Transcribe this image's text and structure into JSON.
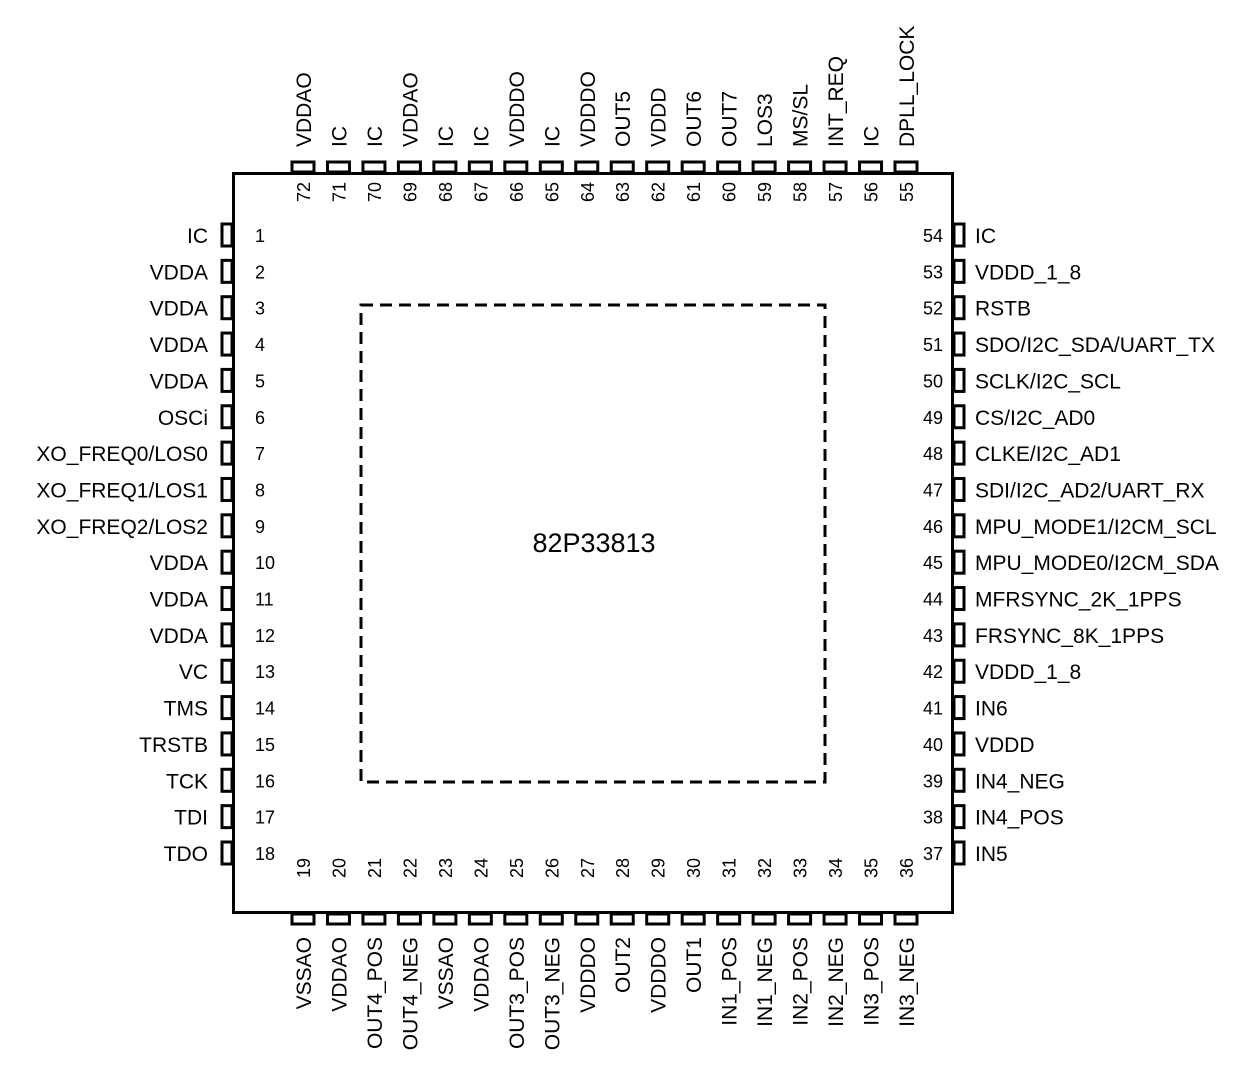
{
  "chip": {
    "name": "82P33813"
  },
  "pins": {
    "left": [
      {
        "num": "1",
        "name": "IC"
      },
      {
        "num": "2",
        "name": "VDDA"
      },
      {
        "num": "3",
        "name": "VDDA"
      },
      {
        "num": "4",
        "name": "VDDA"
      },
      {
        "num": "5",
        "name": "VDDA"
      },
      {
        "num": "6",
        "name": "OSCi"
      },
      {
        "num": "7",
        "name": "XO_FREQ0/LOS0"
      },
      {
        "num": "8",
        "name": "XO_FREQ1/LOS1"
      },
      {
        "num": "9",
        "name": "XO_FREQ2/LOS2"
      },
      {
        "num": "10",
        "name": "VDDA"
      },
      {
        "num": "11",
        "name": "VDDA"
      },
      {
        "num": "12",
        "name": "VDDA"
      },
      {
        "num": "13",
        "name": "VC"
      },
      {
        "num": "14",
        "name": "TMS"
      },
      {
        "num": "15",
        "name": "TRSTB"
      },
      {
        "num": "16",
        "name": "TCK"
      },
      {
        "num": "17",
        "name": "TDI"
      },
      {
        "num": "18",
        "name": "TDO"
      }
    ],
    "bottom": [
      {
        "num": "19",
        "name": "VSSAO"
      },
      {
        "num": "20",
        "name": "VDDAO"
      },
      {
        "num": "21",
        "name": "OUT4_POS"
      },
      {
        "num": "22",
        "name": "OUT4_NEG"
      },
      {
        "num": "23",
        "name": "VSSAO"
      },
      {
        "num": "24",
        "name": "VDDAO"
      },
      {
        "num": "25",
        "name": "OUT3_POS"
      },
      {
        "num": "26",
        "name": "OUT3_NEG"
      },
      {
        "num": "27",
        "name": "VDDDO"
      },
      {
        "num": "28",
        "name": "OUT2"
      },
      {
        "num": "29",
        "name": "VDDDO"
      },
      {
        "num": "30",
        "name": "OUT1"
      },
      {
        "num": "31",
        "name": "IN1_POS"
      },
      {
        "num": "32",
        "name": "IN1_NEG"
      },
      {
        "num": "33",
        "name": "IN2_POS"
      },
      {
        "num": "34",
        "name": "IN2_NEG"
      },
      {
        "num": "35",
        "name": "IN3_POS"
      },
      {
        "num": "36",
        "name": "IN3_NEG"
      }
    ],
    "right": [
      {
        "num": "54",
        "name": "IC"
      },
      {
        "num": "53",
        "name": "VDDD_1_8"
      },
      {
        "num": "52",
        "name": "RSTB"
      },
      {
        "num": "51",
        "name": "SDO/I2C_SDA/UART_TX"
      },
      {
        "num": "50",
        "name": "SCLK/I2C_SCL"
      },
      {
        "num": "49",
        "name": "CS/I2C_AD0"
      },
      {
        "num": "48",
        "name": "CLKE/I2C_AD1"
      },
      {
        "num": "47",
        "name": "SDI/I2C_AD2/UART_RX"
      },
      {
        "num": "46",
        "name": "MPU_MODE1/I2CM_SCL"
      },
      {
        "num": "45",
        "name": "MPU_MODE0/I2CM_SDA"
      },
      {
        "num": "44",
        "name": "MFRSYNC_2K_1PPS"
      },
      {
        "num": "43",
        "name": "FRSYNC_8K_1PPS"
      },
      {
        "num": "42",
        "name": "VDDD_1_8"
      },
      {
        "num": "41",
        "name": "IN6"
      },
      {
        "num": "40",
        "name": "VDDD"
      },
      {
        "num": "39",
        "name": "IN4_NEG"
      },
      {
        "num": "38",
        "name": "IN4_POS"
      },
      {
        "num": "37",
        "name": "IN5"
      }
    ],
    "top": [
      {
        "num": "72",
        "name": "VDDAO"
      },
      {
        "num": "71",
        "name": "IC"
      },
      {
        "num": "70",
        "name": "IC"
      },
      {
        "num": "69",
        "name": "VDDAO"
      },
      {
        "num": "68",
        "name": "IC"
      },
      {
        "num": "67",
        "name": "IC"
      },
      {
        "num": "66",
        "name": "VDDDO"
      },
      {
        "num": "65",
        "name": "IC"
      },
      {
        "num": "64",
        "name": "VDDDO"
      },
      {
        "num": "63",
        "name": "OUT5"
      },
      {
        "num": "62",
        "name": "VDDD"
      },
      {
        "num": "61",
        "name": "OUT6"
      },
      {
        "num": "60",
        "name": "OUT7"
      },
      {
        "num": "59",
        "name": "LOS3"
      },
      {
        "num": "58",
        "name": "MS/SL"
      },
      {
        "num": "57",
        "name": "INT_REQ"
      },
      {
        "num": "56",
        "name": "IC"
      },
      {
        "num": "55",
        "name": "DPLL_LOCK"
      }
    ]
  }
}
